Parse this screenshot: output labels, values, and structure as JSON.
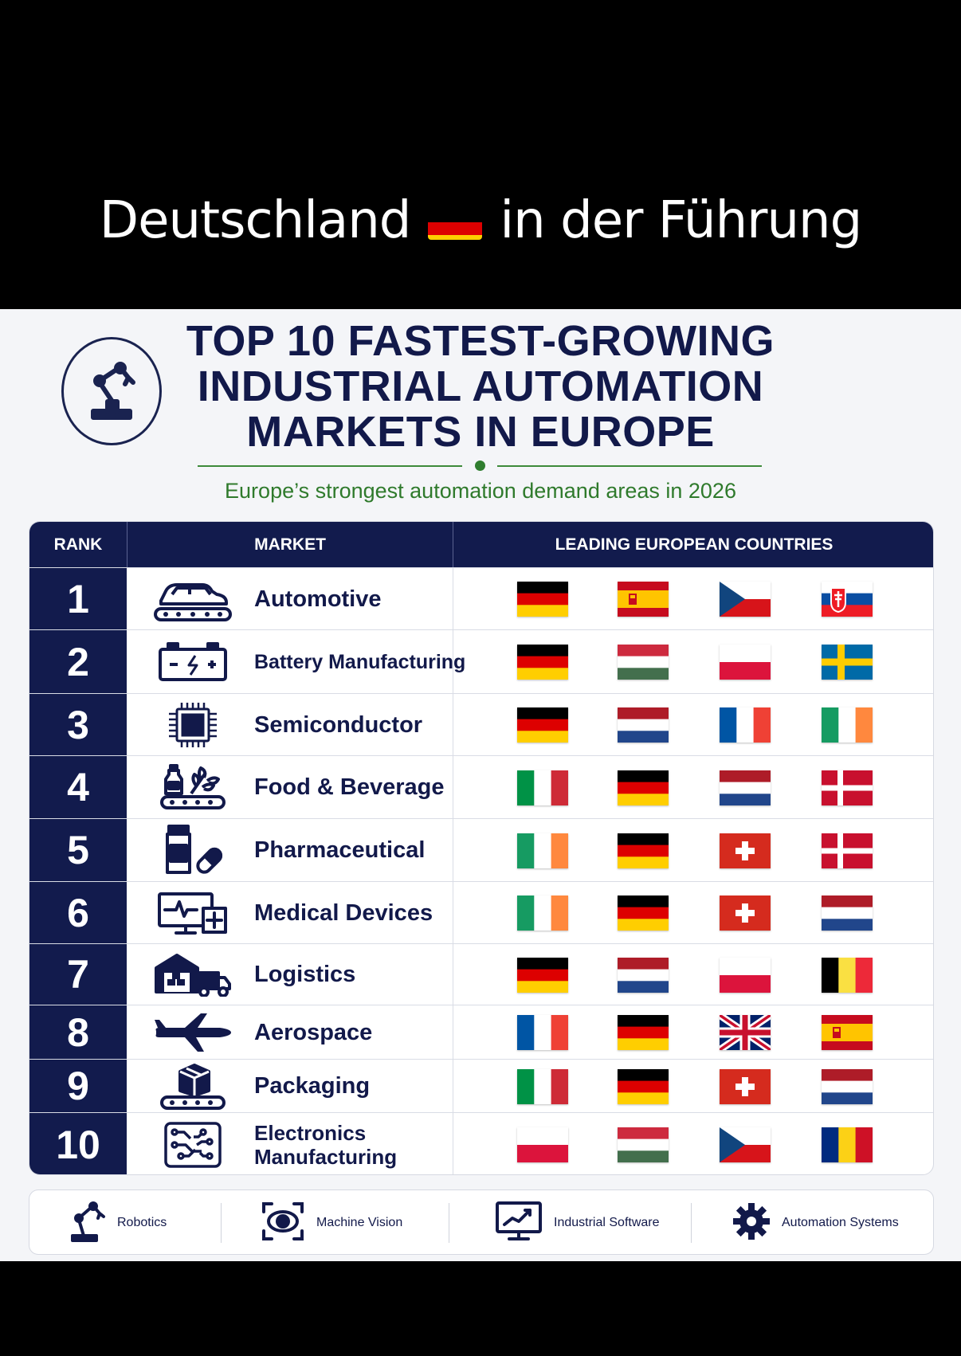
{
  "caption": {
    "text_before": "Deutschland",
    "text_after": "in der Führung",
    "flag": "DE"
  },
  "title": {
    "line1": "TOP 10 FASTEST-GROWING",
    "line2": "INDUSTRIAL AUTOMATION",
    "line3": "MARKETS IN EUROPE"
  },
  "subtitle": "Europe’s strongest automation demand areas in 2026",
  "logo_icon": "robotic-arm-icon",
  "table": {
    "headers": {
      "rank": "RANK",
      "market": "MARKET",
      "countries": "LEADING EUROPEAN COUNTRIES"
    },
    "rows": [
      {
        "rank": "1",
        "market": "Automotive",
        "icon": "car-conveyor-icon",
        "flags": [
          "DE",
          "ES",
          "CZ",
          "SK"
        ]
      },
      {
        "rank": "2",
        "market": "Battery Manufacturing",
        "icon": "battery-icon",
        "flags": [
          "DE",
          "HU",
          "PL",
          "SE"
        ]
      },
      {
        "rank": "3",
        "market": "Semiconductor",
        "icon": "chip-icon",
        "flags": [
          "DE",
          "NL",
          "FR",
          "IE"
        ]
      },
      {
        "rank": "4",
        "market": "Food & Beverage",
        "icon": "food-conveyor-icon",
        "flags": [
          "IT",
          "DE",
          "NL",
          "DK"
        ]
      },
      {
        "rank": "5",
        "market": "Pharmaceutical",
        "icon": "medicine-icon",
        "flags": [
          "IE",
          "DE",
          "CH",
          "DK"
        ]
      },
      {
        "rank": "6",
        "market": "Medical Devices",
        "icon": "medical-monitor-icon",
        "flags": [
          "IE",
          "DE",
          "CH",
          "NL"
        ]
      },
      {
        "rank": "7",
        "market": "Logistics",
        "icon": "warehouse-truck-icon",
        "flags": [
          "DE",
          "NL",
          "PL",
          "BE"
        ]
      },
      {
        "rank": "8",
        "market": "Aerospace",
        "icon": "airplane-icon",
        "flags": [
          "FR",
          "DE",
          "GB",
          "ES"
        ]
      },
      {
        "rank": "9",
        "market": "Packaging",
        "icon": "package-conveyor-icon",
        "flags": [
          "IT",
          "DE",
          "CH",
          "NL"
        ]
      },
      {
        "rank": "10",
        "market_line1": "Electronics",
        "market_line2": "Manufacturing",
        "icon": "circuit-board-icon",
        "flags": [
          "PL",
          "HU",
          "CZ",
          "RO"
        ]
      }
    ]
  },
  "footer": [
    {
      "label": "Robotics",
      "icon": "robot-arm-icon"
    },
    {
      "label": "Machine Vision",
      "icon": "camera-vision-icon"
    },
    {
      "label": "Industrial Software",
      "icon": "monitor-chart-icon"
    },
    {
      "label": "Automation Systems",
      "icon": "gear-icon"
    }
  ],
  "colors": {
    "navy": "#121b4d",
    "green": "#2f7a2c",
    "background": "#f4f5f8"
  }
}
